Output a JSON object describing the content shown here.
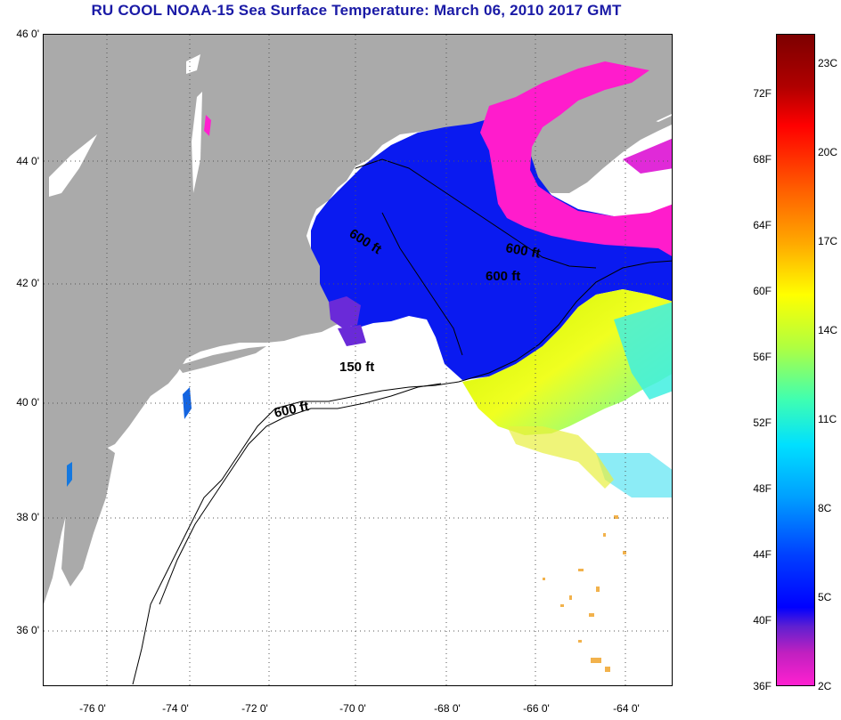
{
  "title": "RU COOL  NOAA-15  Sea Surface Temperature:  March 06, 2010 2017 GMT",
  "map": {
    "lat_labels": [
      "46 0'",
      "44 0'",
      "42 0'",
      "40 0'",
      "38 0'",
      "36 0'"
    ],
    "lon_labels": [
      "-76 0'",
      "-74 0'",
      "-72 0'",
      "-70 0'",
      "-68 0'",
      "-66 0'",
      "-64 0'"
    ],
    "contour_labels": [
      "600 ft",
      "600 ft",
      "600 ft",
      "150 ft",
      "600 ft"
    ],
    "colors": {
      "land": "#aaaaaa",
      "no_data": "#ffffff",
      "grid": "#555555"
    }
  },
  "colorbar": {
    "f_labels": [
      "72F",
      "68F",
      "64F",
      "60F",
      "56F",
      "52F",
      "48F",
      "44F",
      "40F",
      "36F"
    ],
    "c_labels": [
      "23C",
      "20C",
      "17C",
      "14C",
      "11C",
      "8C",
      "5C",
      "2C"
    ]
  }
}
